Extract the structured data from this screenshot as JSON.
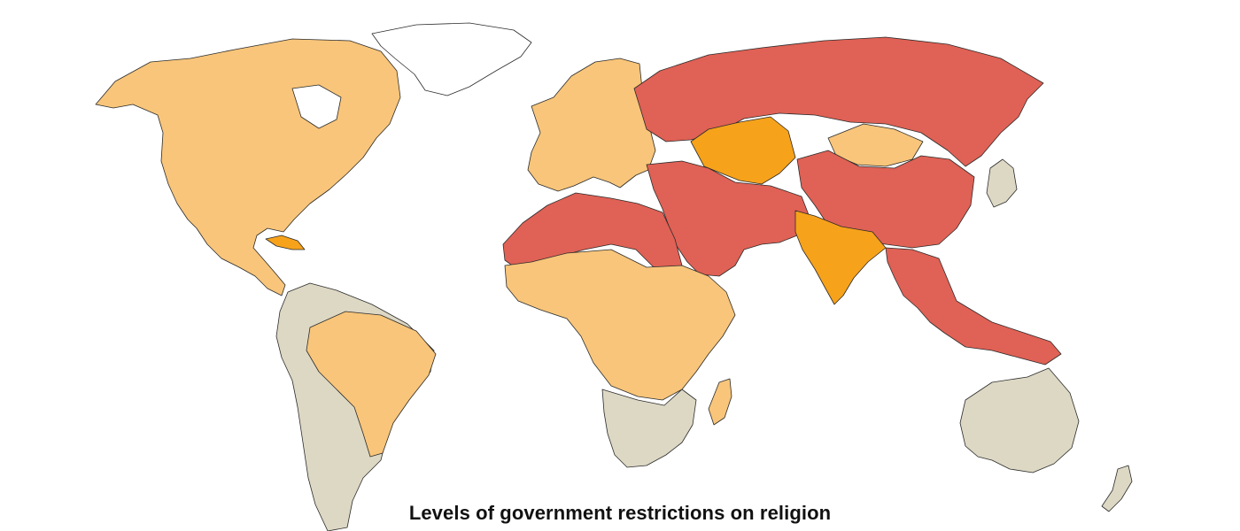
{
  "caption": "Levels of government restrictions on religion",
  "palette": {
    "ocean": "#ffffff",
    "border": "#2b2b2b",
    "very_high": "#e06155",
    "high": "#f6a21b",
    "moderate": "#f8c57a",
    "low": "#ddd8c4"
  },
  "regions": [
    {
      "name": "greenland",
      "level": "none"
    },
    {
      "name": "north-america",
      "level": "moderate"
    },
    {
      "name": "cuba",
      "level": "high"
    },
    {
      "name": "south-america",
      "level": "low"
    },
    {
      "name": "brazil",
      "level": "moderate"
    },
    {
      "name": "europe",
      "level": "moderate"
    },
    {
      "name": "russia",
      "level": "very_high"
    },
    {
      "name": "central-asia",
      "level": "high"
    },
    {
      "name": "mongolia",
      "level": "moderate"
    },
    {
      "name": "china",
      "level": "very_high"
    },
    {
      "name": "middle-east",
      "level": "very_high"
    },
    {
      "name": "north-africa",
      "level": "very_high"
    },
    {
      "name": "west-central-africa",
      "level": "moderate"
    },
    {
      "name": "southern-africa",
      "level": "low"
    },
    {
      "name": "india",
      "level": "high"
    },
    {
      "name": "southeast-asia",
      "level": "very_high"
    },
    {
      "name": "japan",
      "level": "low"
    },
    {
      "name": "australia",
      "level": "low"
    },
    {
      "name": "new-zealand",
      "level": "low"
    }
  ]
}
